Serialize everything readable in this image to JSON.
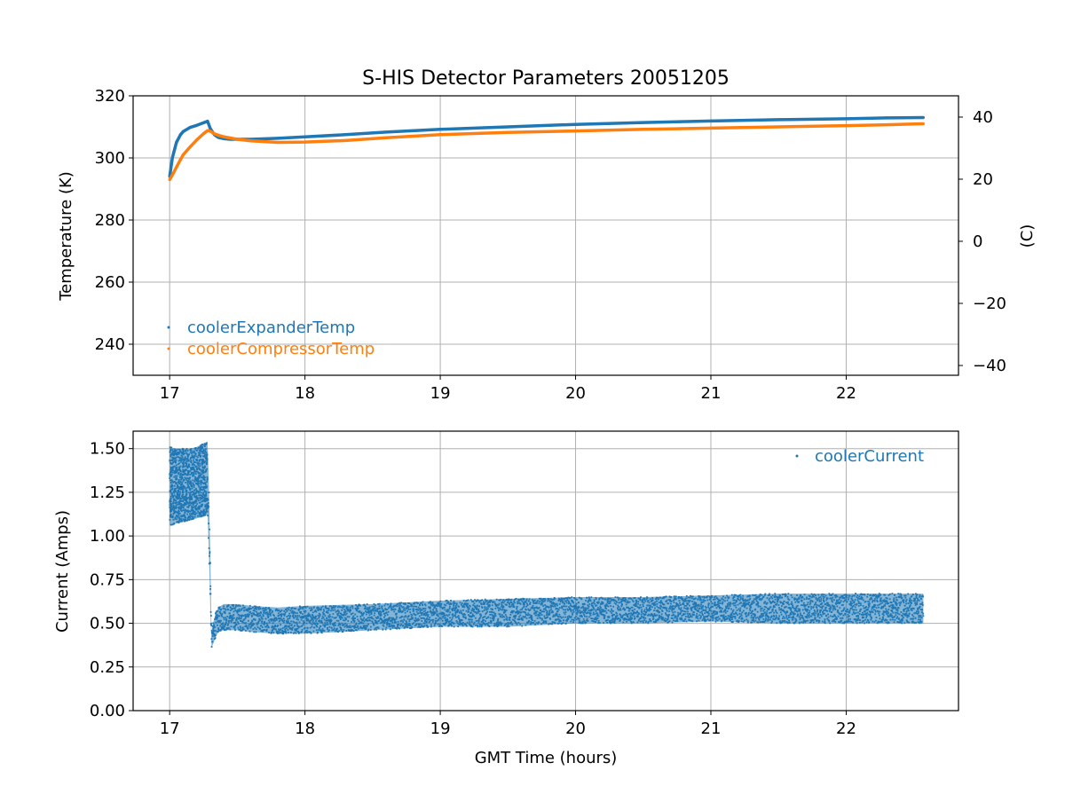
{
  "chart_data": [
    {
      "type": "line",
      "title": "S-HIS Detector Parameters 20051205",
      "xlabel": "",
      "ylabel": "Temperature (K)",
      "y2label": "(C)",
      "xlim": [
        16.73,
        22.83
      ],
      "ylim": [
        230,
        320
      ],
      "y2lim": [
        -43.15,
        46.85
      ],
      "xticks": [
        17,
        18,
        19,
        20,
        21,
        22
      ],
      "yticks": [
        240,
        260,
        280,
        300,
        320
      ],
      "y2ticks": [
        -40,
        -20,
        0,
        20,
        40
      ],
      "y2ticklabels": [
        "−40",
        "−20",
        "0",
        "20",
        "40"
      ],
      "grid": true,
      "legend_position": "lower-left",
      "series": [
        {
          "name": "coolerExpanderTemp",
          "color": "#1f77b4",
          "x": [
            17.0,
            17.02,
            17.05,
            17.08,
            17.1,
            17.15,
            17.2,
            17.25,
            17.28,
            17.3,
            17.33,
            17.36,
            17.4,
            17.45,
            17.5,
            17.6,
            17.8,
            18.0,
            18.3,
            18.6,
            19.0,
            19.5,
            20.0,
            20.5,
            21.0,
            21.5,
            22.0,
            22.3,
            22.57
          ],
          "y": [
            294,
            300,
            305,
            307.5,
            308.5,
            309.8,
            310.5,
            311.3,
            311.8,
            309.5,
            307.5,
            306.6,
            306.2,
            306.0,
            306.0,
            306.0,
            306.3,
            306.8,
            307.5,
            308.3,
            309.2,
            310.0,
            310.8,
            311.4,
            311.9,
            312.3,
            312.6,
            312.9,
            313.0
          ]
        },
        {
          "name": "coolerCompressorTemp",
          "color": "#ff7f0e",
          "x": [
            17.0,
            17.02,
            17.05,
            17.08,
            17.1,
            17.15,
            17.2,
            17.25,
            17.28,
            17.3,
            17.33,
            17.36,
            17.4,
            17.5,
            17.6,
            17.8,
            18.0,
            18.3,
            18.6,
            19.0,
            19.5,
            20.0,
            20.5,
            21.0,
            21.5,
            22.0,
            22.3,
            22.57
          ],
          "y": [
            293,
            294.5,
            297,
            299.5,
            301,
            303.5,
            305.8,
            307.8,
            308.8,
            308.6,
            307.8,
            307.3,
            306.8,
            306,
            305.5,
            305.0,
            305.1,
            305.6,
            306.5,
            307.5,
            308.2,
            308.7,
            309.2,
            309.6,
            310.0,
            310.4,
            310.7,
            311.0
          ]
        }
      ]
    },
    {
      "type": "scatter",
      "title": "",
      "xlabel": "GMT Time (hours)",
      "ylabel": "Current (Amps)",
      "xlim": [
        16.73,
        22.83
      ],
      "ylim": [
        0.0,
        1.6
      ],
      "xticks": [
        17,
        18,
        19,
        20,
        21,
        22
      ],
      "yticks": [
        0.0,
        0.25,
        0.5,
        0.75,
        1.0,
        1.25,
        1.5
      ],
      "yticklabels": [
        "0.00",
        "0.25",
        "0.50",
        "0.75",
        "1.00",
        "1.25",
        "1.50"
      ],
      "grid": true,
      "legend_position": "upper-right",
      "series": [
        {
          "name": "coolerCurrent",
          "color": "#1f77b4",
          "x": [
            17.0,
            17.05,
            17.1,
            17.15,
            17.2,
            17.25,
            17.28,
            17.29,
            17.3,
            17.31,
            17.32,
            17.34,
            17.36,
            17.4,
            17.5,
            17.6,
            17.8,
            18.0,
            18.5,
            19.0,
            19.5,
            20.0,
            20.5,
            21.0,
            21.5,
            22.0,
            22.57
          ],
          "y_low": [
            1.06,
            1.07,
            1.08,
            1.09,
            1.1,
            1.11,
            1.12,
            0.9,
            0.6,
            0.36,
            0.38,
            0.42,
            0.45,
            0.46,
            0.46,
            0.45,
            0.44,
            0.44,
            0.46,
            0.48,
            0.48,
            0.5,
            0.5,
            0.51,
            0.5,
            0.5,
            0.5
          ],
          "y_high": [
            1.51,
            1.5,
            1.5,
            1.5,
            1.51,
            1.53,
            1.54,
            1.3,
            0.9,
            0.45,
            0.5,
            0.56,
            0.59,
            0.61,
            0.61,
            0.6,
            0.59,
            0.6,
            0.61,
            0.63,
            0.64,
            0.65,
            0.65,
            0.66,
            0.67,
            0.67,
            0.67
          ]
        }
      ]
    }
  ]
}
